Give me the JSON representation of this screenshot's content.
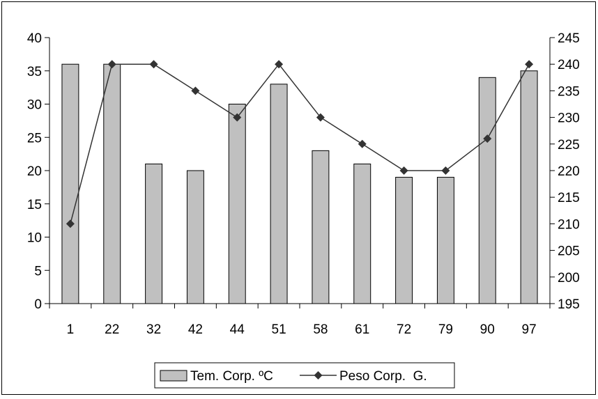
{
  "chart_data": {
    "type": "bar",
    "categories": [
      "1",
      "22",
      "32",
      "42",
      "44",
      "51",
      "58",
      "61",
      "72",
      "79",
      "90",
      "97"
    ],
    "series": [
      {
        "name": "Tem. Corp. ºC",
        "type": "bar",
        "axis": "left",
        "color": "#c0c0c0",
        "values": [
          36,
          36,
          21,
          20,
          30,
          33,
          23,
          21,
          19,
          19,
          34,
          35
        ]
      },
      {
        "name": "Peso Corp.  G.",
        "type": "line",
        "axis": "right",
        "color": "#333333",
        "marker": "diamond",
        "values": [
          210,
          240,
          240,
          235,
          230,
          240,
          230,
          225,
          220,
          220,
          226,
          240
        ]
      }
    ],
    "y_left": {
      "min": 0,
      "max": 40,
      "step": 5,
      "ticks": [
        "0",
        "5",
        "10",
        "15",
        "20",
        "25",
        "30",
        "35",
        "40"
      ]
    },
    "y_right": {
      "min": 195,
      "max": 245,
      "step": 5,
      "ticks": [
        "195",
        "200",
        "205",
        "210",
        "215",
        "220",
        "225",
        "230",
        "235",
        "240",
        "245"
      ]
    },
    "title": "",
    "xlabel": "",
    "ylabel": "",
    "grid": false,
    "legend_position": "bottom"
  }
}
